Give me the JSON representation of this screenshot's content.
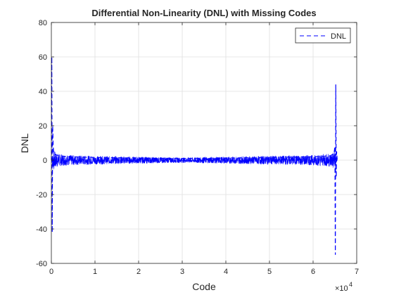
{
  "chart_data": {
    "type": "line",
    "title": "Differential Non-Linearity (DNL) with Missing Codes",
    "xlabel": "Code",
    "ylabel": "DNL",
    "x_exponent_label": "×10",
    "x_exponent_power": "4",
    "xlim": [
      0,
      70000
    ],
    "ylim": [
      -60,
      80
    ],
    "x_ticks": [
      0,
      10000,
      20000,
      30000,
      40000,
      50000,
      60000,
      70000
    ],
    "x_tick_labels": [
      "0",
      "1",
      "2",
      "3",
      "4",
      "5",
      "6",
      "7"
    ],
    "y_ticks": [
      -60,
      -40,
      -20,
      0,
      20,
      40,
      60,
      80
    ],
    "y_tick_labels": [
      "-60",
      "-40",
      "-20",
      "0",
      "20",
      "40",
      "60",
      "80"
    ],
    "grid": true,
    "legend_position": "top-right",
    "series": [
      {
        "name": "DNL",
        "color": "#0000ff",
        "line_style": "dashed",
        "x": [
          0,
          100,
          200,
          300,
          400,
          500,
          1000,
          2000,
          4000,
          10000,
          20000,
          30000,
          40000,
          50000,
          60000,
          64000,
          64800,
          65000,
          65100,
          65200,
          65300,
          65400,
          65535
        ],
        "y": [
          0,
          60,
          -42,
          20,
          10,
          5,
          3,
          2.5,
          2,
          1.5,
          1.2,
          1,
          1.2,
          1.5,
          2,
          2.5,
          4,
          8,
          -55,
          44,
          -10,
          5,
          0
        ],
        "envelope_x": [
          0,
          500,
          1000,
          2000,
          4000,
          10000,
          20000,
          30000,
          40000,
          50000,
          60000,
          64000,
          65000,
          65535
        ],
        "envelope_amplitude": [
          0,
          6,
          4.5,
          3.5,
          3,
          2.5,
          2,
          1.5,
          2,
          2.5,
          3,
          4,
          6,
          0
        ]
      }
    ]
  }
}
